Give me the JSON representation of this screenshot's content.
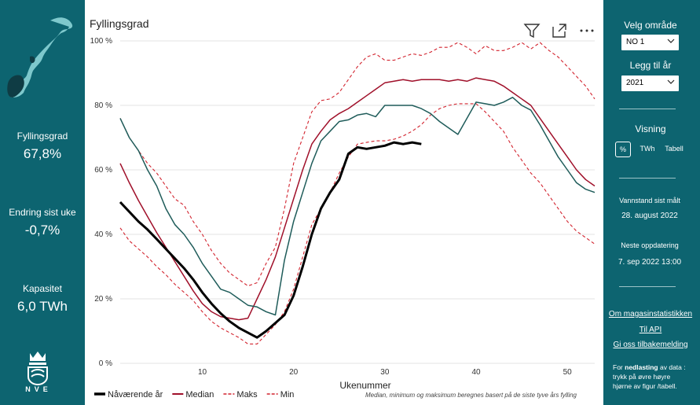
{
  "left_panel": {
    "kpis": [
      {
        "label": "Fyllingsgrad",
        "value": "67,8%"
      },
      {
        "label": "Endring sist uke",
        "value": "-0,7%"
      },
      {
        "label": "Kapasitet",
        "value": "6,0 TWh"
      }
    ],
    "logo_text": "NVE"
  },
  "right_panel": {
    "area_label": "Velg område",
    "area_value": "NO 1",
    "year_label": "Legg til år",
    "year_value": "2021",
    "view_label": "Visning",
    "view_options": [
      "%",
      "TWh",
      "Tabell"
    ],
    "water_level_label": "Vannstand sist målt",
    "water_level_date": "28. august 2022",
    "next_update_label": "Neste oppdatering",
    "next_update_value": "7. sep 2022 13:00",
    "links": [
      "Om magasinstatistikken",
      "Til API",
      "Gi oss tilbakemelding"
    ],
    "download_note_prefix": "For ",
    "download_note_bold": "nedlasting",
    "download_note_suffix": " av data : trykk på øvre høyre hjørne av figur /tabell."
  },
  "chart": {
    "title": "Fyllingsgrad",
    "footnote": "Median, minimum og maksimum beregnes basert på de siste tyve års fylling"
  },
  "colors": {
    "panel": "#0d6470",
    "current": "#000000",
    "median": "#a0102a",
    "maks": "#d2232e",
    "min": "#d2232e",
    "year2021": "#1f5c5a"
  },
  "chart_data": {
    "type": "line",
    "title": "Fyllingsgrad",
    "xlabel": "Ukenummer",
    "ylabel": "",
    "xlim": [
      1,
      53
    ],
    "ylim": [
      0,
      100
    ],
    "x_ticks": [
      10,
      20,
      30,
      40,
      50
    ],
    "y_ticks": [
      0,
      20,
      40,
      60,
      80,
      100
    ],
    "y_tick_labels": [
      "0 %",
      "20 %",
      "40 %",
      "60 %",
      "80 %",
      "100 %"
    ],
    "series": [
      {
        "name": "Nåværende år",
        "style": "current",
        "x": [
          1,
          2,
          3,
          4,
          5,
          6,
          7,
          8,
          9,
          10,
          11,
          12,
          13,
          14,
          15,
          16,
          17,
          18,
          19,
          20,
          21,
          22,
          23,
          24,
          25,
          26,
          27,
          28,
          29,
          30,
          31,
          32,
          33,
          34
        ],
        "values": [
          50,
          47,
          44,
          41.5,
          38.5,
          35.5,
          32.5,
          29.5,
          26,
          22,
          18.5,
          15.5,
          13,
          11,
          9.5,
          8,
          10,
          12.5,
          15,
          21,
          30,
          40,
          48,
          53,
          57,
          65,
          67,
          66.5,
          67,
          67.5,
          68.5,
          68,
          68.5,
          68
        ]
      },
      {
        "name": "Median",
        "style": "median",
        "x": [
          1,
          2,
          3,
          4,
          5,
          6,
          7,
          8,
          9,
          10,
          11,
          12,
          13,
          14,
          15,
          16,
          17,
          18,
          19,
          20,
          21,
          22,
          23,
          24,
          25,
          26,
          27,
          28,
          29,
          30,
          31,
          32,
          33,
          34,
          35,
          36,
          37,
          38,
          39,
          40,
          41,
          42,
          43,
          44,
          45,
          46,
          47,
          48,
          49,
          50,
          51,
          52,
          53
        ],
        "values": [
          62,
          56,
          50.5,
          45.5,
          40.5,
          36,
          31.5,
          27,
          22.5,
          18.5,
          16,
          14.5,
          14,
          13.5,
          14,
          20,
          26,
          33,
          42,
          51,
          60,
          68,
          72,
          75.5,
          77.5,
          79,
          81,
          83,
          85,
          87,
          87.5,
          88,
          87.5,
          88,
          88,
          88,
          87.5,
          88,
          87.5,
          88.5,
          88,
          87.5,
          86,
          84,
          82,
          80,
          76,
          72,
          68,
          64,
          60,
          57,
          55
        ]
      },
      {
        "name": "Maks",
        "style": "maks",
        "x": [
          1,
          2,
          3,
          4,
          5,
          6,
          7,
          8,
          9,
          10,
          11,
          12,
          13,
          14,
          15,
          16,
          17,
          18,
          19,
          20,
          21,
          22,
          23,
          24,
          25,
          26,
          27,
          28,
          29,
          30,
          31,
          32,
          33,
          34,
          35,
          36,
          37,
          38,
          39,
          40,
          41,
          42,
          43,
          44,
          45,
          46,
          47,
          48,
          49,
          50,
          51,
          52,
          53
        ],
        "values": [
          76,
          70,
          66,
          62,
          59,
          55,
          51,
          49,
          44,
          40,
          35,
          31,
          28,
          26,
          24,
          25,
          31,
          36,
          48,
          62,
          70,
          78,
          81.5,
          82,
          84,
          88,
          92,
          95,
          96,
          94,
          94,
          95,
          96,
          95.5,
          96.5,
          98,
          98,
          99.5,
          98,
          96,
          98.5,
          97,
          97,
          98,
          99.5,
          97.5,
          99.5,
          97,
          95,
          92,
          89,
          86,
          82
        ]
      },
      {
        "name": "Min",
        "style": "min",
        "x": [
          1,
          2,
          3,
          4,
          5,
          6,
          7,
          8,
          9,
          10,
          11,
          12,
          13,
          14,
          15,
          16,
          17,
          18,
          19,
          20,
          21,
          22,
          23,
          24,
          25,
          26,
          27,
          28,
          29,
          30,
          31,
          32,
          33,
          34,
          35,
          36,
          37,
          38,
          39,
          40,
          41,
          42,
          43,
          44,
          45,
          46,
          47,
          48,
          49,
          50,
          51,
          52,
          53
        ],
        "values": [
          42,
          38,
          35.5,
          33,
          30,
          27.5,
          24.5,
          22,
          19.5,
          16,
          13,
          11,
          9.5,
          8,
          6,
          6,
          9,
          12,
          16,
          23,
          33,
          43,
          48,
          53,
          59,
          64,
          68,
          68.5,
          69,
          69,
          69.5,
          70.5,
          72,
          74,
          77,
          79,
          80,
          80.5,
          80.5,
          80.5,
          78,
          75,
          72,
          67,
          63,
          59,
          56,
          52,
          48,
          44,
          41,
          39,
          37
        ]
      },
      {
        "name": "2021",
        "style": "year2021",
        "x": [
          1,
          2,
          3,
          4,
          5,
          6,
          7,
          8,
          9,
          10,
          11,
          12,
          13,
          14,
          15,
          16,
          17,
          18,
          19,
          20,
          21,
          22,
          23,
          24,
          25,
          26,
          27,
          28,
          29,
          30,
          31,
          32,
          33,
          34,
          35,
          36,
          37,
          38,
          39,
          40,
          41,
          42,
          43,
          44,
          45,
          46,
          47,
          48,
          49,
          50,
          51,
          52,
          53
        ],
        "values": [
          76,
          70,
          66,
          60,
          55,
          48,
          43,
          40,
          36,
          31,
          27,
          23,
          22,
          20,
          18,
          17.5,
          16,
          15,
          32,
          44,
          53,
          62,
          69,
          72,
          75,
          75.5,
          77,
          77.5,
          76.5,
          80,
          80,
          80,
          80,
          79,
          77.5,
          75,
          73,
          71,
          76,
          81,
          80.5,
          80,
          81,
          82.5,
          80,
          78.5,
          74,
          69,
          64,
          60,
          56,
          54,
          53
        ]
      }
    ],
    "legend": [
      "Nåværende år",
      "Median",
      "Maks",
      "Min"
    ],
    "legend_position": "bottom-left"
  }
}
